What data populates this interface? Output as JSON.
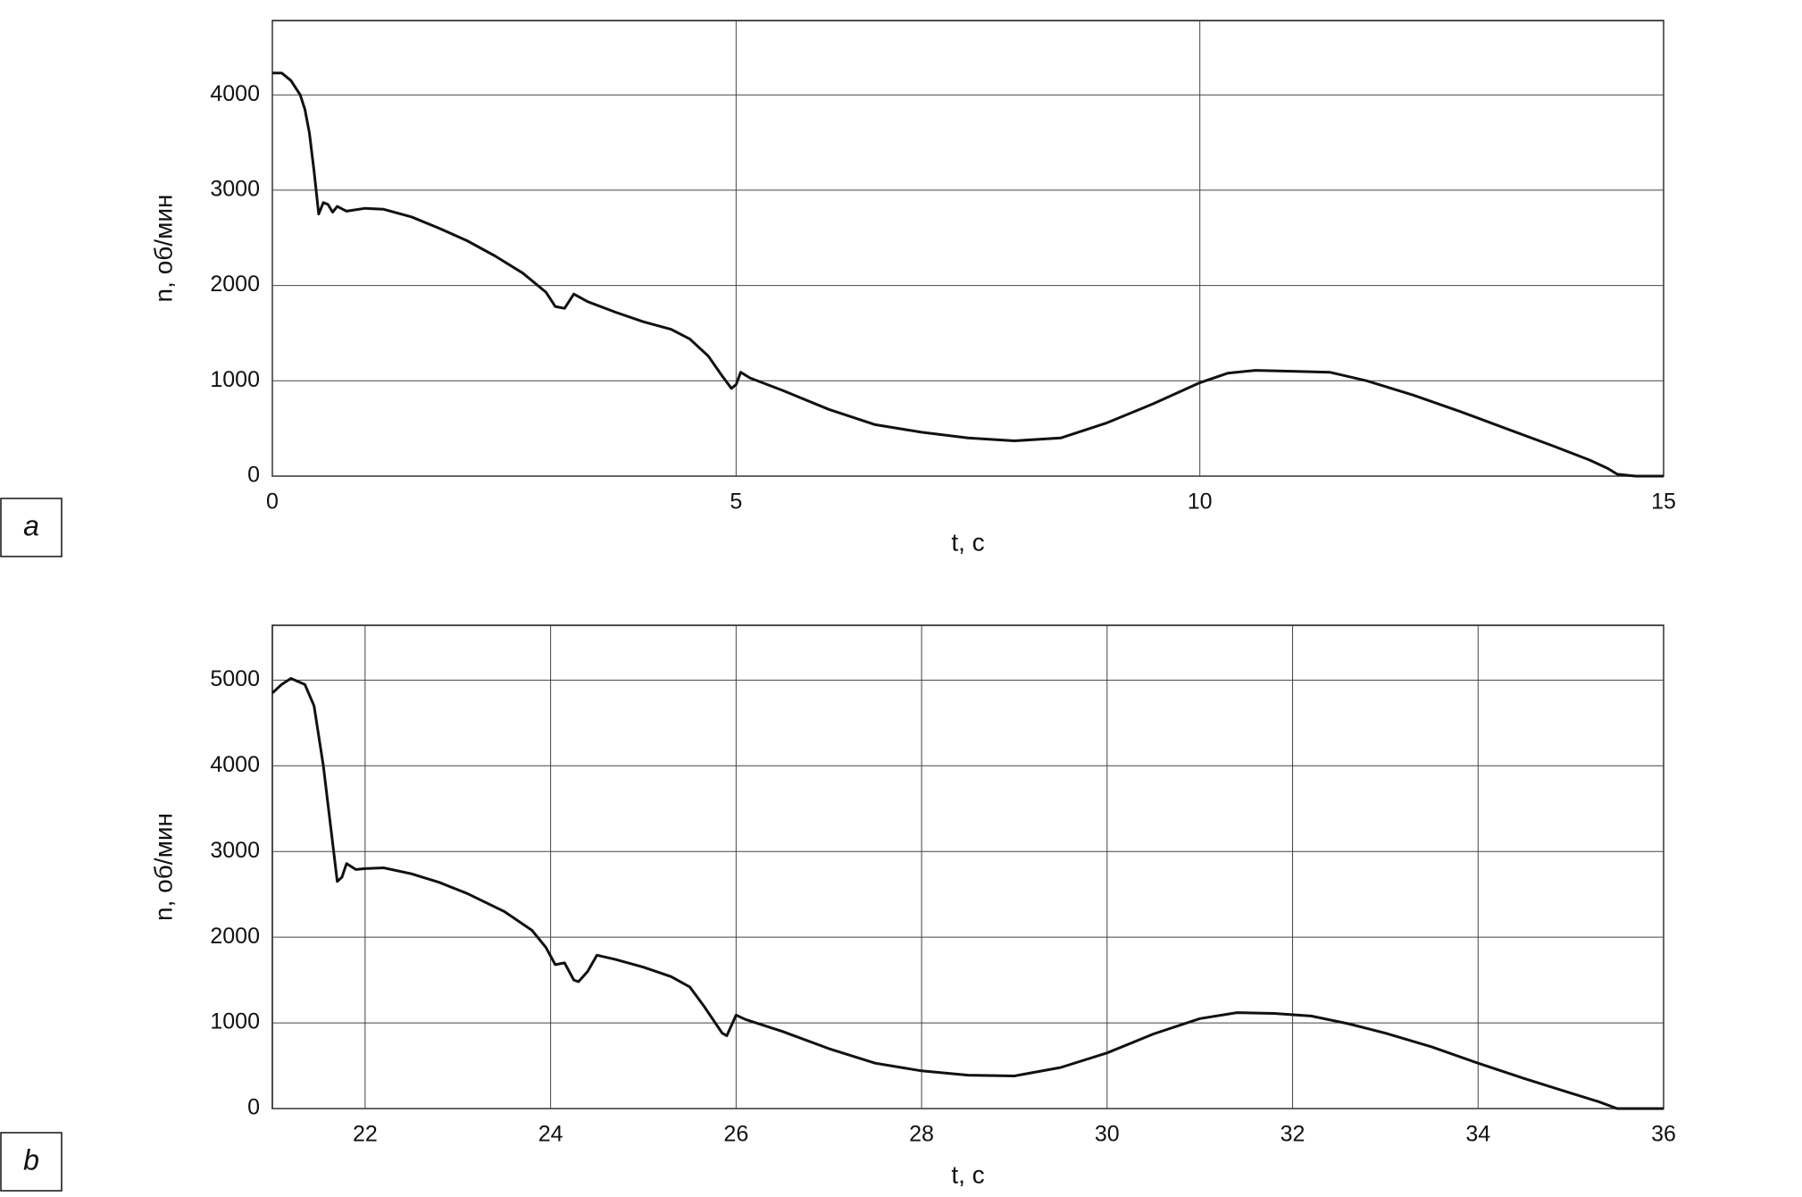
{
  "chart_data": [
    {
      "type": "line",
      "label": "a",
      "xlabel": "t, с",
      "ylabel": "n, об/мин",
      "xlim": [
        0,
        15
      ],
      "xticks": [
        0,
        5,
        10,
        15
      ],
      "ylim": [
        0,
        4780
      ],
      "yticks": [
        0,
        1000,
        2000,
        3000,
        4000
      ],
      "grid": true,
      "series": [
        {
          "color": "#111111",
          "x": [
            0,
            0.1,
            0.2,
            0.3,
            0.35,
            0.4,
            0.45,
            0.5,
            0.55,
            0.6,
            0.65,
            0.7,
            0.8,
            1.0,
            1.2,
            1.5,
            1.8,
            2.1,
            2.4,
            2.7,
            2.95,
            3.05,
            3.15,
            3.25,
            3.4,
            3.7,
            4.0,
            4.3,
            4.5,
            4.7,
            4.85,
            4.95,
            5.0,
            5.05,
            5.15,
            5.5,
            6.0,
            6.5,
            7.0,
            7.5,
            8.0,
            8.5,
            9.0,
            9.5,
            10.0,
            10.3,
            10.6,
            11.0,
            11.4,
            11.8,
            12.3,
            12.8,
            13.3,
            13.8,
            14.2,
            14.4,
            14.5,
            14.7,
            15
          ],
          "values": [
            4230,
            4230,
            4150,
            4000,
            3850,
            3600,
            3200,
            2750,
            2870,
            2850,
            2770,
            2830,
            2780,
            2810,
            2800,
            2720,
            2600,
            2470,
            2310,
            2130,
            1930,
            1780,
            1760,
            1910,
            1830,
            1720,
            1620,
            1540,
            1440,
            1260,
            1050,
            920,
            960,
            1090,
            1030,
            900,
            700,
            540,
            460,
            400,
            370,
            400,
            560,
            760,
            980,
            1080,
            1110,
            1100,
            1090,
            1000,
            850,
            680,
            500,
            320,
            170,
            80,
            20,
            0,
            0
          ]
        }
      ]
    },
    {
      "type": "line",
      "label": "b",
      "xlabel": "t, с",
      "ylabel": "n, об/мин",
      "xlim": [
        21,
        36
      ],
      "xticks": [
        22,
        24,
        26,
        28,
        30,
        32,
        34,
        36
      ],
      "ylim": [
        0,
        5640
      ],
      "yticks": [
        0,
        1000,
        2000,
        3000,
        4000,
        5000
      ],
      "grid": true,
      "series": [
        {
          "color": "#111111",
          "x": [
            21.0,
            21.1,
            21.2,
            21.35,
            21.45,
            21.55,
            21.65,
            21.7,
            21.75,
            21.8,
            21.9,
            22.0,
            22.2,
            22.5,
            22.8,
            23.1,
            23.5,
            23.8,
            23.95,
            24.05,
            24.15,
            24.25,
            24.3,
            24.4,
            24.5,
            24.7,
            25.0,
            25.3,
            25.5,
            25.65,
            25.85,
            25.9,
            26.0,
            26.1,
            26.5,
            27.0,
            27.5,
            28.0,
            28.5,
            29.0,
            29.5,
            30.0,
            30.5,
            31.0,
            31.4,
            31.8,
            32.2,
            32.6,
            33.0,
            33.5,
            34.0,
            34.5,
            35.0,
            35.3,
            35.5,
            36
          ],
          "values": [
            4850,
            4950,
            5020,
            4950,
            4700,
            4000,
            3100,
            2650,
            2700,
            2860,
            2790,
            2800,
            2810,
            2740,
            2640,
            2510,
            2300,
            2080,
            1880,
            1680,
            1700,
            1500,
            1480,
            1600,
            1790,
            1740,
            1650,
            1540,
            1420,
            1200,
            880,
            850,
            1090,
            1040,
            900,
            700,
            530,
            440,
            390,
            380,
            480,
            650,
            870,
            1050,
            1120,
            1110,
            1080,
            990,
            880,
            720,
            530,
            350,
            180,
            80,
            0,
            0
          ]
        }
      ]
    }
  ]
}
